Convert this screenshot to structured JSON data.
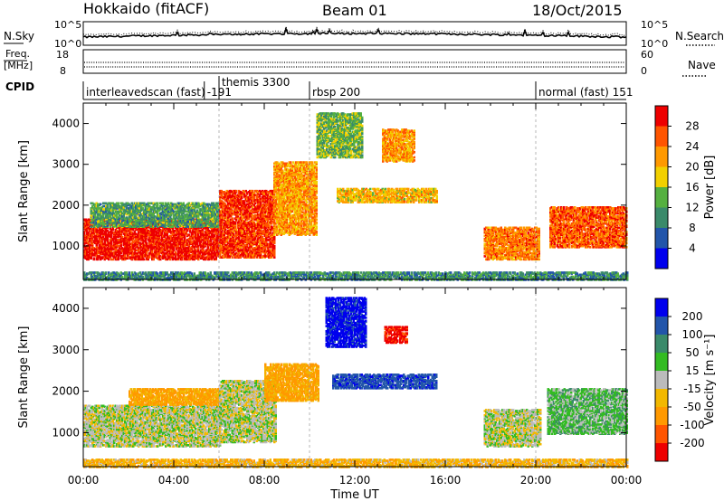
{
  "header": {
    "station": "Hokkaido (fitACF)",
    "beam": "Beam 01",
    "date": "18/Oct/2015"
  },
  "nsky": {
    "left_label": "N.Sky",
    "left_ticks": [
      "10^5",
      "10^0"
    ],
    "right_ticks": [
      "10^5",
      "10^0"
    ],
    "right_label": "N.Search"
  },
  "freq": {
    "left_label_1": "Freq.",
    "left_label_2": "[MHz]",
    "left_ticks": [
      "18",
      "8"
    ],
    "right_ticks": [
      "60",
      "0"
    ],
    "right_label": "Nave"
  },
  "cpid": {
    "label": "CPID",
    "segments": [
      {
        "start_hour": 0.0,
        "text": "interleavedscan (fast)"
      },
      {
        "start_hour": 5.35,
        "text": "-191"
      },
      {
        "start_hour": 6.0,
        "text": "themis 3300"
      },
      {
        "start_hour": 10.0,
        "text": "rbsp 200"
      },
      {
        "start_hour": 20.0,
        "text": "normal (fast) 151"
      }
    ]
  },
  "colors": {
    "power": [
      "#0000ee",
      "#2255aa",
      "#3a8a6a",
      "#55b040",
      "#f2d000",
      "#ff9900",
      "#ff5500",
      "#ee0000"
    ],
    "velocity": [
      "#ee0000",
      "#ff5500",
      "#ff9900",
      "#f2b800",
      "#bbbbbb",
      "#33bb22",
      "#3a8a6a",
      "#2255aa",
      "#0000ee"
    ]
  },
  "chart_data": [
    {
      "type": "heatmap",
      "title": "Power",
      "ylabel": "Slant Range [km]",
      "xlim": [
        0,
        24
      ],
      "ylim": [
        180,
        4500
      ],
      "yticks": [
        1000,
        2000,
        3000,
        4000
      ],
      "colorbar": {
        "label": "Power [dB]",
        "range": [
          0,
          32
        ],
        "ticks": [
          4,
          8,
          12,
          16,
          20,
          24,
          28
        ]
      },
      "features": [
        {
          "t0": 0.0,
          "t1": 6.0,
          "r0": 700,
          "r1": 1700,
          "value": 30
        },
        {
          "t0": 0.3,
          "t1": 6.0,
          "r0": 1500,
          "r1": 2100,
          "value": 12
        },
        {
          "t0": 6.0,
          "t1": 8.4,
          "r0": 750,
          "r1": 2400,
          "value": 28
        },
        {
          "t0": 8.4,
          "t1": 10.3,
          "r0": 1300,
          "r1": 3100,
          "value": 22
        },
        {
          "t0": 10.3,
          "t1": 12.3,
          "r0": 3200,
          "r1": 4300,
          "value": 14
        },
        {
          "t0": 11.2,
          "t1": 15.6,
          "r0": 2100,
          "r1": 2450,
          "value": 20
        },
        {
          "t0": 13.2,
          "t1": 14.6,
          "r0": 3100,
          "r1": 3900,
          "value": 22
        },
        {
          "t0": 17.7,
          "t1": 20.1,
          "r0": 700,
          "r1": 1500,
          "value": 24
        },
        {
          "t0": 20.6,
          "t1": 24.0,
          "r0": 1000,
          "r1": 2000,
          "value": 26
        },
        {
          "t0": 0.0,
          "t1": 24.0,
          "r0": 200,
          "r1": 380,
          "value": 10
        }
      ]
    },
    {
      "type": "heatmap",
      "title": "Velocity",
      "ylabel": "Slant Range [km]",
      "xlabel": "Time UT",
      "xlim": [
        0,
        24
      ],
      "xticks": [
        "00:00",
        "04:00",
        "08:00",
        "12:00",
        "16:00",
        "20:00",
        "00:00"
      ],
      "ylim": [
        180,
        4500
      ],
      "yticks": [
        1000,
        2000,
        3000,
        4000
      ],
      "colorbar": {
        "label": "Velocity [m s⁻¹]",
        "range": [
          -250,
          250
        ],
        "ticks": [
          "200",
          "100",
          "50",
          "15",
          "-15",
          "-50",
          "-100",
          "-200"
        ]
      },
      "features": [
        {
          "t0": 0.0,
          "t1": 6.0,
          "r0": 700,
          "r1": 1700,
          "value": 0
        },
        {
          "t0": 2.0,
          "t1": 6.0,
          "r0": 1700,
          "r1": 2100,
          "value": -60
        },
        {
          "t0": 6.0,
          "t1": 8.5,
          "r0": 800,
          "r1": 2300,
          "value": 0
        },
        {
          "t0": 8.0,
          "t1": 10.4,
          "r0": 1800,
          "r1": 2700,
          "value": -60
        },
        {
          "t0": 11.0,
          "t1": 15.6,
          "r0": 2100,
          "r1": 2450,
          "value": 180
        },
        {
          "t0": 10.7,
          "t1": 12.5,
          "r0": 3100,
          "r1": 4300,
          "value": 220
        },
        {
          "t0": 13.3,
          "t1": 14.3,
          "r0": 3200,
          "r1": 3600,
          "value": -220
        },
        {
          "t0": 17.7,
          "t1": 20.2,
          "r0": 700,
          "r1": 1600,
          "value": 0
        },
        {
          "t0": 20.5,
          "t1": 24.0,
          "r0": 1000,
          "r1": 2100,
          "value": 30
        },
        {
          "t0": 0.0,
          "t1": 24.0,
          "r0": 200,
          "r1": 380,
          "value": -40
        }
      ]
    }
  ]
}
